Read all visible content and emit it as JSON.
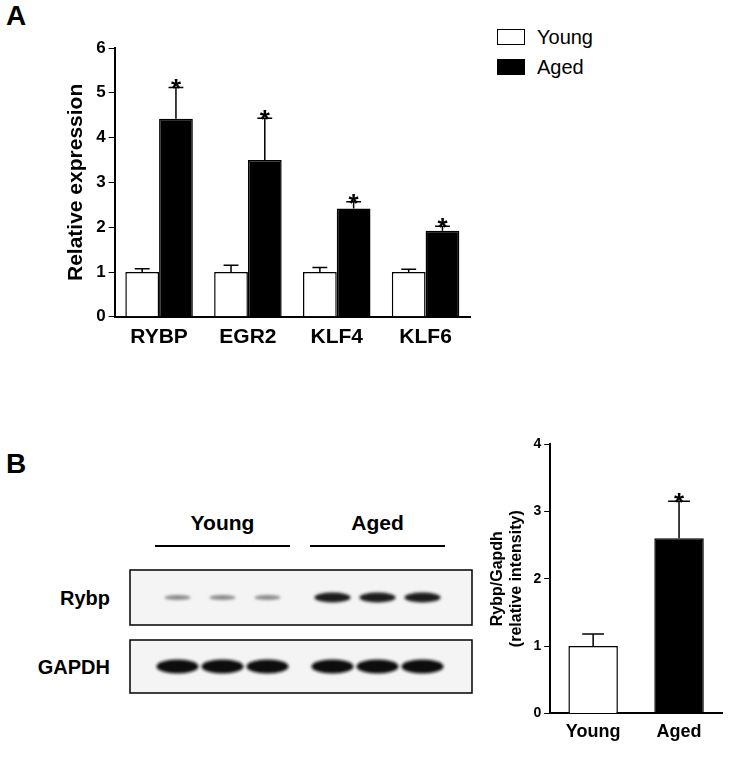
{
  "panel_labels": [
    "A",
    "B"
  ],
  "chart_data": [
    {
      "type": "bar",
      "categories": [
        "RYBP",
        "EGR2",
        "KLF4",
        "KLF6"
      ],
      "y_label": "Relative expression",
      "series": [
        {
          "name": "Young",
          "color": "#ffffff",
          "values": [
            1,
            1,
            1,
            1
          ],
          "errors": [
            0.07,
            0.15,
            0.1,
            0.06
          ]
        },
        {
          "name": "Aged",
          "color": "#000000",
          "values": [
            4.42,
            3.5,
            2.42,
            1.92
          ],
          "errors": [
            0.7,
            0.93,
            0.15,
            0.1
          ]
        }
      ],
      "ylim": [
        0,
        6
      ],
      "yticks": [
        0,
        1,
        2,
        3,
        4,
        5,
        6
      ],
      "grid": false,
      "legend": "upper right",
      "annotations": [
        {
          "category": "RYBP",
          "series": "Aged",
          "text": "*"
        },
        {
          "category": "EGR2",
          "series": "Aged",
          "text": "*"
        },
        {
          "category": "KLF4",
          "series": "Aged",
          "text": "*"
        },
        {
          "category": "KLF6",
          "series": "Aged",
          "text": "*"
        }
      ]
    },
    {
      "type": "bar",
      "categories": [
        "Young",
        "Aged"
      ],
      "values": [
        1,
        2.6
      ],
      "errors": [
        0.18,
        0.55
      ],
      "colors": [
        "#ffffff",
        "#000000"
      ],
      "y_label": [
        "Rybp/Gapdh",
        "(relative intensity)"
      ],
      "ylim": [
        0,
        4
      ],
      "yticks": [
        0,
        1,
        2,
        3,
        4
      ],
      "grid": false,
      "annotations": [
        {
          "category": "Aged",
          "text": "*"
        }
      ]
    }
  ],
  "blot": {
    "groups": [
      "Young",
      "Aged"
    ],
    "rows": [
      "Rybp",
      "GAPDH"
    ],
    "lanes_per_group": 3
  }
}
